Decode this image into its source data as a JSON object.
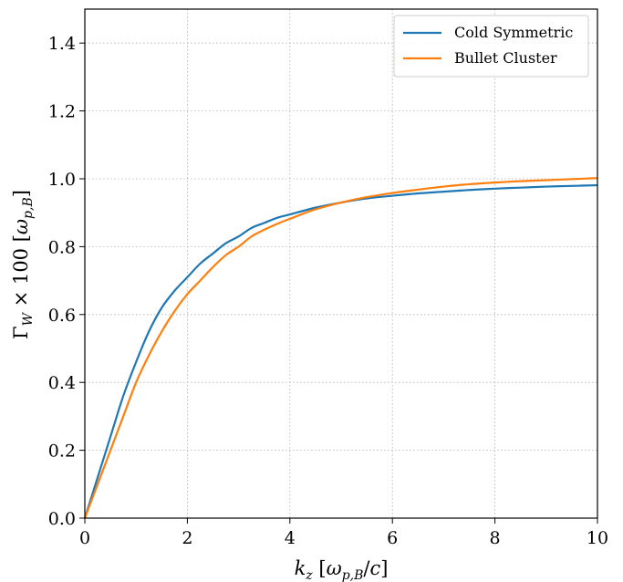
{
  "chart_data": {
    "type": "line",
    "title": "",
    "xlabel": "k_z [ω_{p,B}/c]",
    "ylabel": "Γ_W × 100 [ω_{p,B}]",
    "xlim": [
      0,
      10
    ],
    "ylim": [
      0,
      1.5
    ],
    "xticks": [
      0,
      2,
      4,
      6,
      8,
      10
    ],
    "yticks": [
      0.0,
      0.2,
      0.4,
      0.6,
      0.8,
      1.0,
      1.2,
      1.4
    ],
    "xtick_labels": [
      "0",
      "2",
      "4",
      "6",
      "8",
      "10"
    ],
    "ytick_labels": [
      "0.0",
      "0.2",
      "0.4",
      "0.6",
      "0.8",
      "1.0",
      "1.2",
      "1.4"
    ],
    "grid": true,
    "legend_position": "top-right",
    "series": [
      {
        "name": "Cold Symmetric",
        "color": "#1f77b4",
        "x": [
          0,
          0.25,
          0.5,
          0.75,
          1.0,
          1.25,
          1.5,
          1.75,
          2.0,
          2.25,
          2.5,
          2.75,
          3.0,
          3.25,
          3.5,
          3.75,
          4.0,
          4.5,
          5.0,
          5.5,
          6.0,
          6.5,
          7.0,
          7.5,
          8.0,
          8.5,
          9.0,
          9.5,
          10.0
        ],
        "y": [
          0.0,
          0.12,
          0.24,
          0.36,
          0.46,
          0.55,
          0.62,
          0.67,
          0.71,
          0.75,
          0.78,
          0.81,
          0.83,
          0.855,
          0.87,
          0.885,
          0.895,
          0.915,
          0.93,
          0.942,
          0.95,
          0.957,
          0.962,
          0.967,
          0.971,
          0.974,
          0.977,
          0.979,
          0.981
        ]
      },
      {
        "name": "Bullet Cluster",
        "color": "#ff7f0e",
        "x": [
          0,
          0.25,
          0.5,
          0.75,
          1.0,
          1.25,
          1.5,
          1.75,
          2.0,
          2.25,
          2.5,
          2.75,
          3.0,
          3.25,
          3.5,
          3.75,
          4.0,
          4.5,
          5.0,
          5.5,
          6.0,
          6.5,
          7.0,
          7.5,
          8.0,
          8.5,
          9.0,
          9.5,
          10.0
        ],
        "y": [
          0.0,
          0.1,
          0.2,
          0.3,
          0.4,
          0.48,
          0.55,
          0.61,
          0.66,
          0.7,
          0.74,
          0.775,
          0.8,
          0.83,
          0.85,
          0.867,
          0.882,
          0.91,
          0.93,
          0.946,
          0.958,
          0.968,
          0.977,
          0.984,
          0.989,
          0.993,
          0.996,
          0.999,
          1.002
        ]
      }
    ]
  }
}
